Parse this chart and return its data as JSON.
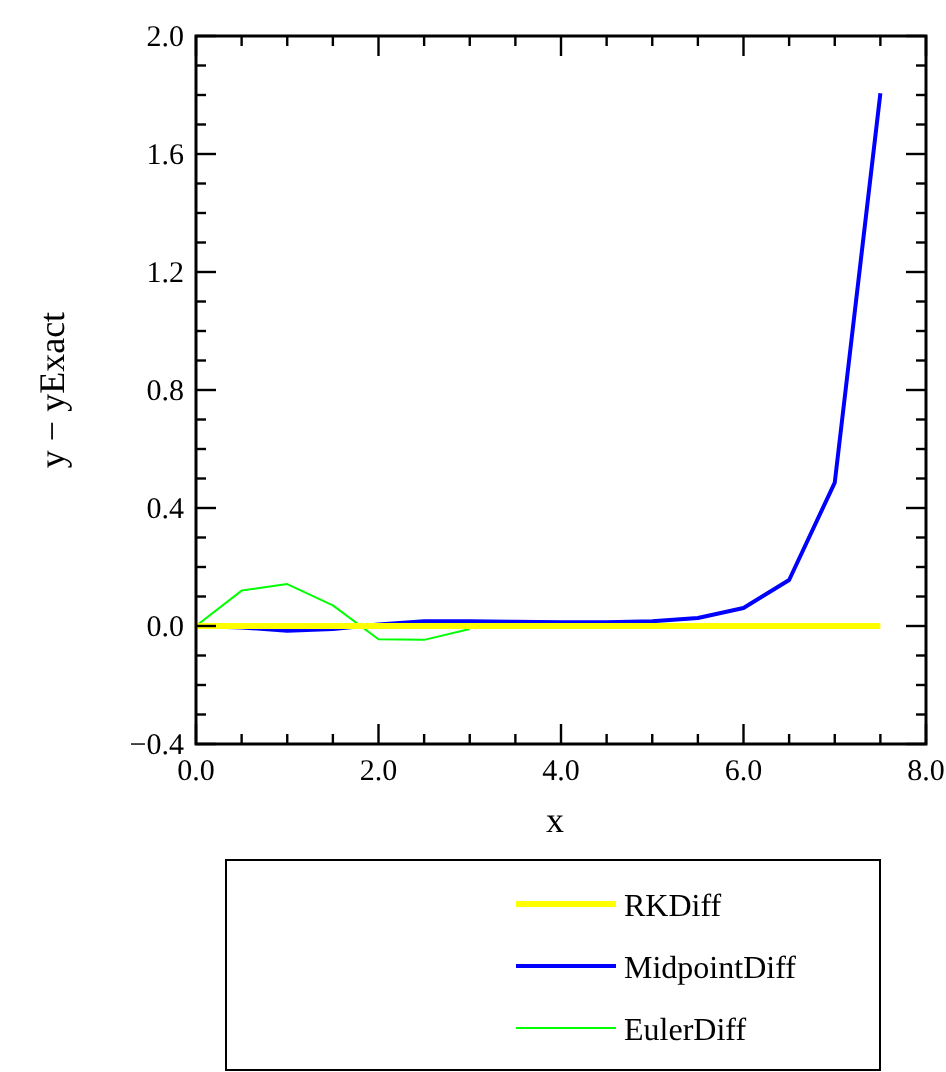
{
  "chart_data": {
    "type": "line",
    "xlabel": "x",
    "ylabel": "y − yExact",
    "x": [
      0,
      0.5,
      1,
      1.5,
      2,
      2.5,
      3,
      3.5,
      4,
      4.5,
      5,
      5.5,
      6,
      6.5,
      7,
      7.5
    ],
    "xlim": [
      0,
      8
    ],
    "ylim": [
      -0.4,
      2.0
    ],
    "xticks": [
      {
        "value": 0,
        "label": "0.0"
      },
      {
        "value": 0.5,
        "label": null
      },
      {
        "value": 1,
        "label": null
      },
      {
        "value": 1.5,
        "label": null
      },
      {
        "value": 2,
        "label": "2.0"
      },
      {
        "value": 2.5,
        "label": null
      },
      {
        "value": 3,
        "label": null
      },
      {
        "value": 3.5,
        "label": null
      },
      {
        "value": 4,
        "label": "4.0"
      },
      {
        "value": 4.5,
        "label": null
      },
      {
        "value": 5,
        "label": null
      },
      {
        "value": 5.5,
        "label": null
      },
      {
        "value": 6,
        "label": "6.0"
      },
      {
        "value": 6.5,
        "label": null
      },
      {
        "value": 7,
        "label": null
      },
      {
        "value": 7.5,
        "label": null
      },
      {
        "value": 8,
        "label": "8.0"
      }
    ],
    "yticks": [
      {
        "value": -0.4,
        "label": "−0.4"
      },
      {
        "value": -0.3,
        "label": null
      },
      {
        "value": -0.2,
        "label": null
      },
      {
        "value": -0.1,
        "label": null
      },
      {
        "value": 0,
        "label": "0.0"
      },
      {
        "value": 0.1,
        "label": null
      },
      {
        "value": 0.2,
        "label": null
      },
      {
        "value": 0.3,
        "label": null
      },
      {
        "value": 0.4,
        "label": "0.4"
      },
      {
        "value": 0.5,
        "label": null
      },
      {
        "value": 0.6,
        "label": null
      },
      {
        "value": 0.7,
        "label": null
      },
      {
        "value": 0.8,
        "label": "0.8"
      },
      {
        "value": 0.9,
        "label": null
      },
      {
        "value": 1.0,
        "label": null
      },
      {
        "value": 1.1,
        "label": null
      },
      {
        "value": 1.2,
        "label": "1.2"
      },
      {
        "value": 1.3,
        "label": null
      },
      {
        "value": 1.4,
        "label": null
      },
      {
        "value": 1.5,
        "label": null
      },
      {
        "value": 1.6,
        "label": "1.6"
      },
      {
        "value": 1.7,
        "label": null
      },
      {
        "value": 1.8,
        "label": null
      },
      {
        "value": 1.9,
        "label": null
      },
      {
        "value": 2.0,
        "label": "2.0"
      }
    ],
    "grid": false,
    "legend": "bottom",
    "series": [
      {
        "name": "RKDiff",
        "color": "#ffff00",
        "values": [
          0,
          0,
          0,
          0,
          0,
          0,
          0,
          0,
          0,
          0,
          0,
          0,
          0,
          0,
          0,
          0
        ]
      },
      {
        "name": "MidpointDiff",
        "color": "#0000ff",
        "values": [
          0,
          -0.005,
          -0.016,
          -0.01,
          0.005,
          0.016,
          0.016,
          0.014,
          0.013,
          0.013,
          0.016,
          0.027,
          0.061,
          0.156,
          0.486,
          1.806
        ]
      },
      {
        "name": "EulerDiff",
        "color": "#00ff00",
        "values": [
          0,
          0.12,
          0.142,
          0.07,
          -0.045,
          -0.047,
          -0.01,
          null,
          null,
          null,
          null,
          null,
          null,
          null,
          null,
          null
        ]
      }
    ]
  }
}
